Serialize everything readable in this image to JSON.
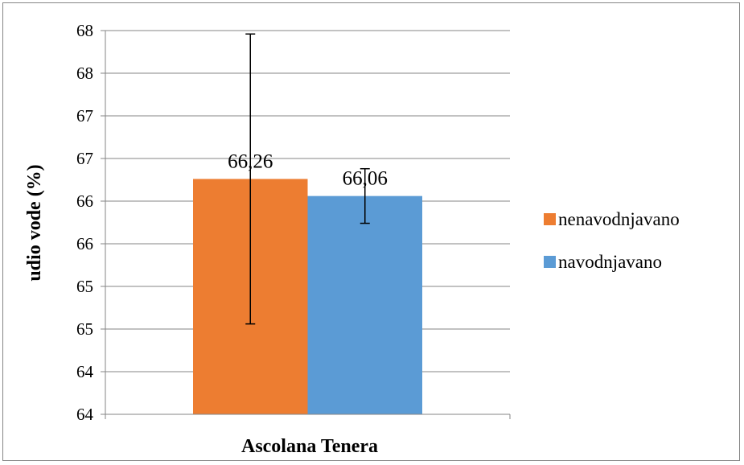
{
  "chart_data": {
    "type": "bar",
    "categories": [
      "Ascolana Tenera"
    ],
    "xlabel": "Ascolana Tenera",
    "ylabel": "udio vode (%)",
    "ylim": [
      63.5,
      68.0
    ],
    "y_tick_values": [
      63.5,
      64.0,
      64.5,
      65.0,
      65.5,
      66.0,
      66.5,
      67.0,
      67.5,
      68.0
    ],
    "y_tick_labels": [
      "64",
      "64",
      "65",
      "65",
      "66",
      "66",
      "67",
      "67",
      "68",
      "68"
    ],
    "grid": true,
    "legend_position": "right",
    "series": [
      {
        "name": "nenavodnjavano",
        "values": [
          66.26
        ],
        "error": [
          1.7
        ],
        "data_label": "66,26",
        "color": "#ED7D31"
      },
      {
        "name": "navodnjavano",
        "values": [
          66.06
        ],
        "error": [
          0.32
        ],
        "data_label": "66,06",
        "color": "#5B9BD5"
      }
    ]
  }
}
